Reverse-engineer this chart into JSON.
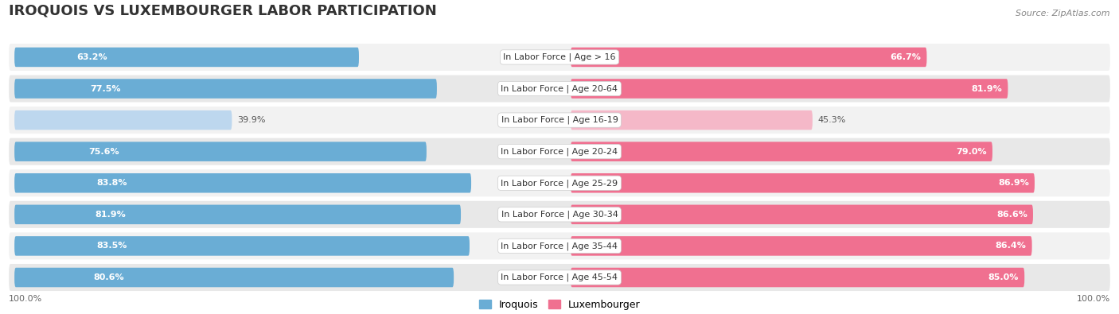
{
  "title": "IROQUOIS VS LUXEMBOURGER LABOR PARTICIPATION",
  "source": "Source: ZipAtlas.com",
  "categories": [
    "In Labor Force | Age > 16",
    "In Labor Force | Age 20-64",
    "In Labor Force | Age 16-19",
    "In Labor Force | Age 20-24",
    "In Labor Force | Age 25-29",
    "In Labor Force | Age 30-34",
    "In Labor Force | Age 35-44",
    "In Labor Force | Age 45-54"
  ],
  "iroquois": [
    63.2,
    77.5,
    39.9,
    75.6,
    83.8,
    81.9,
    83.5,
    80.6
  ],
  "luxembourger": [
    66.7,
    81.9,
    45.3,
    79.0,
    86.9,
    86.6,
    86.4,
    85.0
  ],
  "iroquois_color": "#6AADD5",
  "iroquois_color_light": "#BDD7EE",
  "luxembourger_color": "#F07090",
  "luxembourger_color_light": "#F5B8C8",
  "row_bg_even": "#F2F2F2",
  "row_bg_odd": "#E8E8E8",
  "label_white": "#FFFFFF",
  "label_dark": "#555555",
  "max_val": 100.0,
  "legend_iroquois": "Iroquois",
  "legend_luxembourger": "Luxembourger",
  "figsize": [
    14.06,
    3.95
  ],
  "dpi": 100,
  "title_fontsize": 13,
  "source_fontsize": 8,
  "value_fontsize": 8,
  "cat_fontsize": 8,
  "legend_fontsize": 9
}
